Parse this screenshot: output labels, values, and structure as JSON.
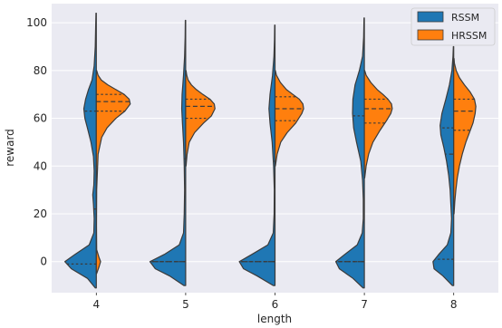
{
  "chart_data": {
    "type": "violin",
    "split": true,
    "title": "",
    "xlabel": "length",
    "ylabel": "reward",
    "categories": [
      "4",
      "5",
      "6",
      "7",
      "8"
    ],
    "ylim": [
      -13,
      108
    ],
    "yticks": [
      0,
      20,
      40,
      60,
      80,
      100
    ],
    "grid": true,
    "legend_position": "top-right",
    "colors": {
      "background": "#eaeaf2",
      "grid": "#ffffff",
      "outline": "#3b3b3b"
    },
    "series": [
      {
        "name": "RSSM",
        "color": "#1f77b4",
        "side": "left",
        "groups": [
          {
            "min": -11,
            "max": 104,
            "quartiles": [
              -1,
              22,
              63
            ],
            "density": [
              [
                -11,
                0.03
              ],
              [
                -7,
                0.25
              ],
              [
                -3,
                0.7
              ],
              [
                0,
                0.88
              ],
              [
                3,
                0.6
              ],
              [
                7,
                0.2
              ],
              [
                12,
                0.07
              ],
              [
                18,
                0.06
              ],
              [
                24,
                0.08
              ],
              [
                28,
                0.1
              ],
              [
                32,
                0.07
              ],
              [
                38,
                0.06
              ],
              [
                44,
                0.08
              ],
              [
                50,
                0.15
              ],
              [
                56,
                0.25
              ],
              [
                60,
                0.32
              ],
              [
                64,
                0.35
              ],
              [
                68,
                0.3
              ],
              [
                72,
                0.22
              ],
              [
                76,
                0.12
              ],
              [
                82,
                0.06
              ],
              [
                90,
                0.03
              ],
              [
                97,
                0.02
              ],
              [
                104,
                0.01
              ]
            ]
          },
          {
            "min": -10,
            "max": 101,
            "quartiles": [
              0,
              0,
              43
            ],
            "density": [
              [
                -10,
                0.05
              ],
              [
                -6,
                0.45
              ],
              [
                -3,
                0.85
              ],
              [
                0,
                1.0
              ],
              [
                3,
                0.6
              ],
              [
                7,
                0.18
              ],
              [
                12,
                0.06
              ],
              [
                20,
                0.04
              ],
              [
                30,
                0.03
              ],
              [
                40,
                0.04
              ],
              [
                50,
                0.06
              ],
              [
                58,
                0.09
              ],
              [
                64,
                0.11
              ],
              [
                70,
                0.1
              ],
              [
                78,
                0.06
              ],
              [
                86,
                0.03
              ],
              [
                94,
                0.015
              ],
              [
                101,
                0.01
              ]
            ]
          },
          {
            "min": -10,
            "max": 99,
            "quartiles": [
              0,
              0,
              42
            ],
            "density": [
              [
                -10,
                0.05
              ],
              [
                -6,
                0.5
              ],
              [
                -3,
                0.88
              ],
              [
                0,
                1.0
              ],
              [
                3,
                0.65
              ],
              [
                7,
                0.2
              ],
              [
                12,
                0.05
              ],
              [
                20,
                0.025
              ],
              [
                30,
                0.02
              ],
              [
                40,
                0.04
              ],
              [
                50,
                0.08
              ],
              [
                58,
                0.14
              ],
              [
                64,
                0.17
              ],
              [
                70,
                0.14
              ],
              [
                78,
                0.07
              ],
              [
                86,
                0.03
              ],
              [
                93,
                0.015
              ],
              [
                99,
                0.01
              ]
            ]
          },
          {
            "min": -11,
            "max": 102,
            "quartiles": [
              0,
              0,
              61
            ],
            "density": [
              [
                -11,
                0.04
              ],
              [
                -7,
                0.32
              ],
              [
                -3,
                0.7
              ],
              [
                0,
                0.8
              ],
              [
                3,
                0.55
              ],
              [
                7,
                0.2
              ],
              [
                12,
                0.06
              ],
              [
                18,
                0.03
              ],
              [
                26,
                0.03
              ],
              [
                34,
                0.05
              ],
              [
                42,
                0.1
              ],
              [
                50,
                0.22
              ],
              [
                56,
                0.3
              ],
              [
                62,
                0.33
              ],
              [
                68,
                0.32
              ],
              [
                74,
                0.26
              ],
              [
                80,
                0.14
              ],
              [
                86,
                0.05
              ],
              [
                94,
                0.02
              ],
              [
                102,
                0.01
              ]
            ]
          },
          {
            "min": -10,
            "max": 90,
            "quartiles": [
              1,
              45,
              56
            ],
            "density": [
              [
                -10,
                0.04
              ],
              [
                -6,
                0.3
              ],
              [
                -3,
                0.55
              ],
              [
                0,
                0.58
              ],
              [
                3,
                0.42
              ],
              [
                7,
                0.18
              ],
              [
                12,
                0.08
              ],
              [
                18,
                0.06
              ],
              [
                24,
                0.08
              ],
              [
                30,
                0.1
              ],
              [
                36,
                0.14
              ],
              [
                42,
                0.2
              ],
              [
                48,
                0.28
              ],
              [
                53,
                0.36
              ],
              [
                57,
                0.38
              ],
              [
                62,
                0.33
              ],
              [
                68,
                0.22
              ],
              [
                74,
                0.12
              ],
              [
                80,
                0.05
              ],
              [
                86,
                0.02
              ],
              [
                90,
                0.01
              ]
            ]
          }
        ]
      },
      {
        "name": "HRSSM",
        "color": "#ff7f0e",
        "side": "right",
        "groups": [
          {
            "min": -5,
            "max": 80,
            "quartiles": [
              63,
              67,
              70
            ],
            "density": [
              [
                -5,
                0.01
              ],
              [
                -2,
                0.08
              ],
              [
                0,
                0.12
              ],
              [
                2,
                0.07
              ],
              [
                5,
                0.01
              ],
              [
                15,
                0.005
              ],
              [
                30,
                0.01
              ],
              [
                45,
                0.05
              ],
              [
                52,
                0.15
              ],
              [
                56,
                0.3
              ],
              [
                60,
                0.55
              ],
              [
                63,
                0.8
              ],
              [
                66,
                0.95
              ],
              [
                68,
                0.92
              ],
              [
                70,
                0.78
              ],
              [
                72,
                0.55
              ],
              [
                74,
                0.32
              ],
              [
                76,
                0.14
              ],
              [
                78,
                0.05
              ],
              [
                80,
                0.01
              ]
            ]
          },
          {
            "min": 40,
            "max": 80,
            "quartiles": [
              60,
              65,
              68
            ],
            "density": [
              [
                40,
                0.01
              ],
              [
                45,
                0.04
              ],
              [
                50,
                0.1
              ],
              [
                54,
                0.25
              ],
              [
                58,
                0.5
              ],
              [
                61,
                0.72
              ],
              [
                64,
                0.82
              ],
              [
                66,
                0.8
              ],
              [
                68,
                0.68
              ],
              [
                70,
                0.48
              ],
              [
                72,
                0.3
              ],
              [
                74,
                0.16
              ],
              [
                76,
                0.07
              ],
              [
                78,
                0.03
              ],
              [
                80,
                0.01
              ]
            ]
          },
          {
            "min": 40,
            "max": 80,
            "quartiles": [
              59,
              64,
              69
            ],
            "density": [
              [
                40,
                0.01
              ],
              [
                45,
                0.06
              ],
              [
                50,
                0.16
              ],
              [
                54,
                0.34
              ],
              [
                58,
                0.58
              ],
              [
                62,
                0.75
              ],
              [
                64,
                0.8
              ],
              [
                66,
                0.78
              ],
              [
                68,
                0.68
              ],
              [
                70,
                0.5
              ],
              [
                72,
                0.32
              ],
              [
                75,
                0.15
              ],
              [
                78,
                0.04
              ],
              [
                80,
                0.01
              ]
            ]
          },
          {
            "min": 35,
            "max": 80,
            "quartiles": [
              58,
              64,
              68
            ],
            "density": [
              [
                35,
                0.01
              ],
              [
                40,
                0.05
              ],
              [
                45,
                0.12
              ],
              [
                50,
                0.24
              ],
              [
                55,
                0.44
              ],
              [
                59,
                0.62
              ],
              [
                62,
                0.74
              ],
              [
                64,
                0.78
              ],
              [
                66,
                0.76
              ],
              [
                68,
                0.66
              ],
              [
                70,
                0.52
              ],
              [
                72,
                0.36
              ],
              [
                75,
                0.18
              ],
              [
                78,
                0.05
              ],
              [
                80,
                0.01
              ]
            ]
          },
          {
            "min": 20,
            "max": 85,
            "quartiles": [
              55,
              63,
              68
            ],
            "density": [
              [
                20,
                0.01
              ],
              [
                25,
                0.03
              ],
              [
                30,
                0.06
              ],
              [
                35,
                0.1
              ],
              [
                40,
                0.16
              ],
              [
                45,
                0.24
              ],
              [
                50,
                0.34
              ],
              [
                54,
                0.44
              ],
              [
                58,
                0.54
              ],
              [
                62,
                0.6
              ],
              [
                65,
                0.62
              ],
              [
                68,
                0.58
              ],
              [
                71,
                0.46
              ],
              [
                74,
                0.3
              ],
              [
                77,
                0.16
              ],
              [
                80,
                0.07
              ],
              [
                83,
                0.02
              ],
              [
                85,
                0.01
              ]
            ]
          }
        ]
      }
    ]
  }
}
